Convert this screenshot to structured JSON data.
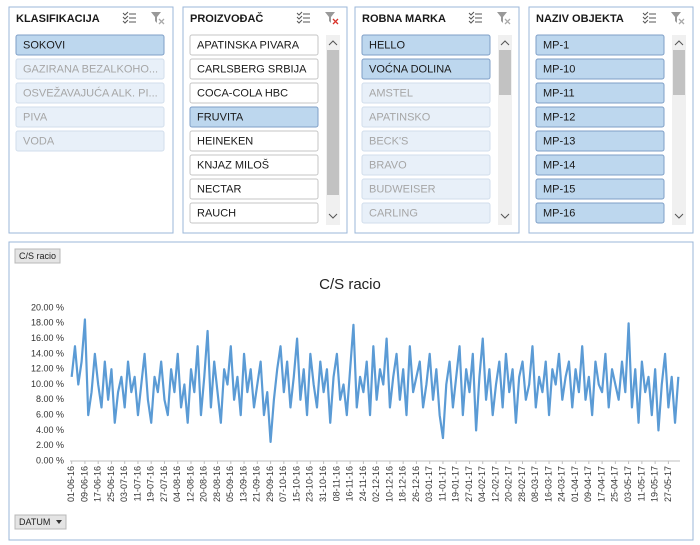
{
  "slicers": [
    {
      "title": "KLASIFIKACIJA",
      "scrollbar": false,
      "items": [
        {
          "label": "SOKOVI",
          "state": "selected"
        },
        {
          "label": "GAZIRANA BEZALKOHO...",
          "state": "nodata"
        },
        {
          "label": "OSVEŽAVAJUĆA ALK. PI...",
          "state": "nodata"
        },
        {
          "label": "PIVA",
          "state": "nodata"
        },
        {
          "label": "VODA",
          "state": "nodata"
        }
      ]
    },
    {
      "title": "PROIZVOĐAČ",
      "scrollbar": true,
      "items": [
        {
          "label": "APATINSKA PIVARA",
          "state": "available"
        },
        {
          "label": "CARLSBERG SRBIJA",
          "state": "available"
        },
        {
          "label": "COCA-COLA HBC",
          "state": "available"
        },
        {
          "label": "FRUVITA",
          "state": "selected"
        },
        {
          "label": "HEINEKEN",
          "state": "available"
        },
        {
          "label": "KNJAZ MILOŠ",
          "state": "available"
        },
        {
          "label": "NECTAR",
          "state": "available"
        },
        {
          "label": "RAUCH",
          "state": "available"
        }
      ]
    },
    {
      "title": "ROBNA MARKA",
      "scrollbar": true,
      "items": [
        {
          "label": "HELLO",
          "state": "selected"
        },
        {
          "label": "VOĆNA DOLINA",
          "state": "selected"
        },
        {
          "label": "AMSTEL",
          "state": "nodata"
        },
        {
          "label": "APATINSKO",
          "state": "nodata"
        },
        {
          "label": "BECK'S",
          "state": "nodata"
        },
        {
          "label": "BRAVO",
          "state": "nodata"
        },
        {
          "label": "BUDWEISER",
          "state": "nodata"
        },
        {
          "label": "CARLING",
          "state": "nodata"
        }
      ]
    },
    {
      "title": "NAZIV OBJEKTA",
      "scrollbar": true,
      "items": [
        {
          "label": "MP-1",
          "state": "selected"
        },
        {
          "label": "MP-10",
          "state": "selected"
        },
        {
          "label": "MP-11",
          "state": "selected"
        },
        {
          "label": "MP-12",
          "state": "selected"
        },
        {
          "label": "MP-13",
          "state": "selected"
        },
        {
          "label": "MP-14",
          "state": "selected"
        },
        {
          "label": "MP-15",
          "state": "selected"
        },
        {
          "label": "MP-16",
          "state": "selected"
        }
      ]
    }
  ],
  "chart_data": {
    "type": "line",
    "title": "C/S racio",
    "value_button": "C/S racio",
    "axis_button": "DATUM",
    "color": "#5b9bd5",
    "grid": false,
    "ylim": [
      0,
      20
    ],
    "yticks": [
      {
        "value": 0,
        "label": "0.00 %"
      },
      {
        "value": 2,
        "label": "2.00 %"
      },
      {
        "value": 4,
        "label": "4.00 %"
      },
      {
        "value": 6,
        "label": "6.00 %"
      },
      {
        "value": 8,
        "label": "8.00 %"
      },
      {
        "value": 10,
        "label": "10.00 %"
      },
      {
        "value": 12,
        "label": "12.00 %"
      },
      {
        "value": 14,
        "label": "14.00 %"
      },
      {
        "value": 16,
        "label": "16.00 %"
      },
      {
        "value": 18,
        "label": "18.00 %"
      },
      {
        "value": 20,
        "label": "20.00 %"
      }
    ],
    "categories": [
      "01-06-16",
      null,
      null,
      null,
      "09-06-16",
      null,
      null,
      null,
      "17-06-16",
      null,
      null,
      null,
      "25-06-16",
      null,
      null,
      null,
      "03-07-16",
      null,
      null,
      null,
      "11-07-16",
      null,
      null,
      null,
      "19-07-16",
      null,
      null,
      null,
      "27-07-16",
      null,
      null,
      null,
      "04-08-16",
      null,
      null,
      null,
      "12-08-16",
      null,
      null,
      null,
      "20-08-16",
      null,
      null,
      null,
      "28-08-16",
      null,
      null,
      null,
      "05-09-16",
      null,
      null,
      null,
      "13-09-16",
      null,
      null,
      null,
      "21-09-16",
      null,
      null,
      null,
      "29-09-16",
      null,
      null,
      null,
      "07-10-16",
      null,
      null,
      null,
      "15-10-16",
      null,
      null,
      null,
      "23-10-16",
      null,
      null,
      null,
      "31-10-16",
      null,
      null,
      null,
      "08-11-16",
      null,
      null,
      null,
      "16-11-16",
      null,
      null,
      null,
      "24-11-16",
      null,
      null,
      null,
      "02-12-16",
      null,
      null,
      null,
      "10-12-16",
      null,
      null,
      null,
      "18-12-16",
      null,
      null,
      null,
      "26-12-16",
      null,
      null,
      null,
      "03-01-17",
      null,
      null,
      null,
      "11-01-17",
      null,
      null,
      null,
      "19-01-17",
      null,
      null,
      null,
      "27-01-17",
      null,
      null,
      null,
      "04-02-17",
      null,
      null,
      null,
      "12-02-17",
      null,
      null,
      null,
      "20-02-17",
      null,
      null,
      null,
      "28-02-17",
      null,
      null,
      null,
      "08-03-17",
      null,
      null,
      null,
      "16-03-17",
      null,
      null,
      null,
      "24-03-17",
      null,
      null,
      null,
      "01-04-17",
      null,
      null,
      null,
      "09-04-17",
      null,
      null,
      null,
      "17-04-17",
      null,
      null,
      null,
      "25-04-17",
      null,
      null,
      null,
      "03-05-17",
      null,
      null,
      null,
      "11-05-17",
      null,
      null,
      null,
      "19-05-17",
      null,
      null,
      null,
      "27-05-17",
      null,
      null,
      null
    ],
    "values": [
      11,
      15,
      10,
      13,
      18.5,
      6,
      9,
      14,
      10,
      7,
      13,
      8,
      12,
      5,
      9,
      11,
      7,
      13,
      9,
      11,
      6,
      10,
      14,
      8,
      5,
      11,
      9,
      13,
      8,
      6,
      12,
      9,
      14,
      7,
      10,
      5,
      12,
      9,
      15,
      6,
      11,
      17,
      7,
      13,
      9,
      5,
      12,
      10,
      15,
      8,
      11,
      6,
      14,
      9,
      12,
      7,
      10,
      13,
      6,
      9,
      2.5,
      8,
      12,
      15,
      9,
      13,
      7,
      11,
      16,
      8,
      12,
      6,
      14,
      10,
      7,
      13,
      9,
      12,
      5,
      11,
      14,
      8,
      10,
      6,
      12,
      17.8,
      7,
      11,
      9,
      13,
      6,
      15,
      8,
      12,
      10,
      16,
      7,
      11,
      14,
      8,
      12,
      6,
      15,
      9,
      11,
      13,
      7,
      10,
      14,
      8,
      12,
      6,
      3,
      10,
      13,
      7,
      11,
      15,
      6,
      12,
      9,
      14,
      4,
      11,
      16,
      8,
      12,
      6,
      10,
      13,
      7,
      14,
      9,
      12,
      5,
      11,
      13,
      8,
      10,
      15,
      7,
      11,
      9,
      13,
      6,
      12,
      10,
      14,
      8,
      11,
      13,
      7,
      12,
      9,
      15,
      8,
      11,
      6,
      13,
      10,
      9,
      14,
      7,
      12,
      10,
      8,
      13,
      9,
      18,
      7,
      12,
      5,
      13,
      9,
      11,
      6,
      12,
      4,
      10,
      14,
      7,
      11,
      5,
      11
    ]
  }
}
